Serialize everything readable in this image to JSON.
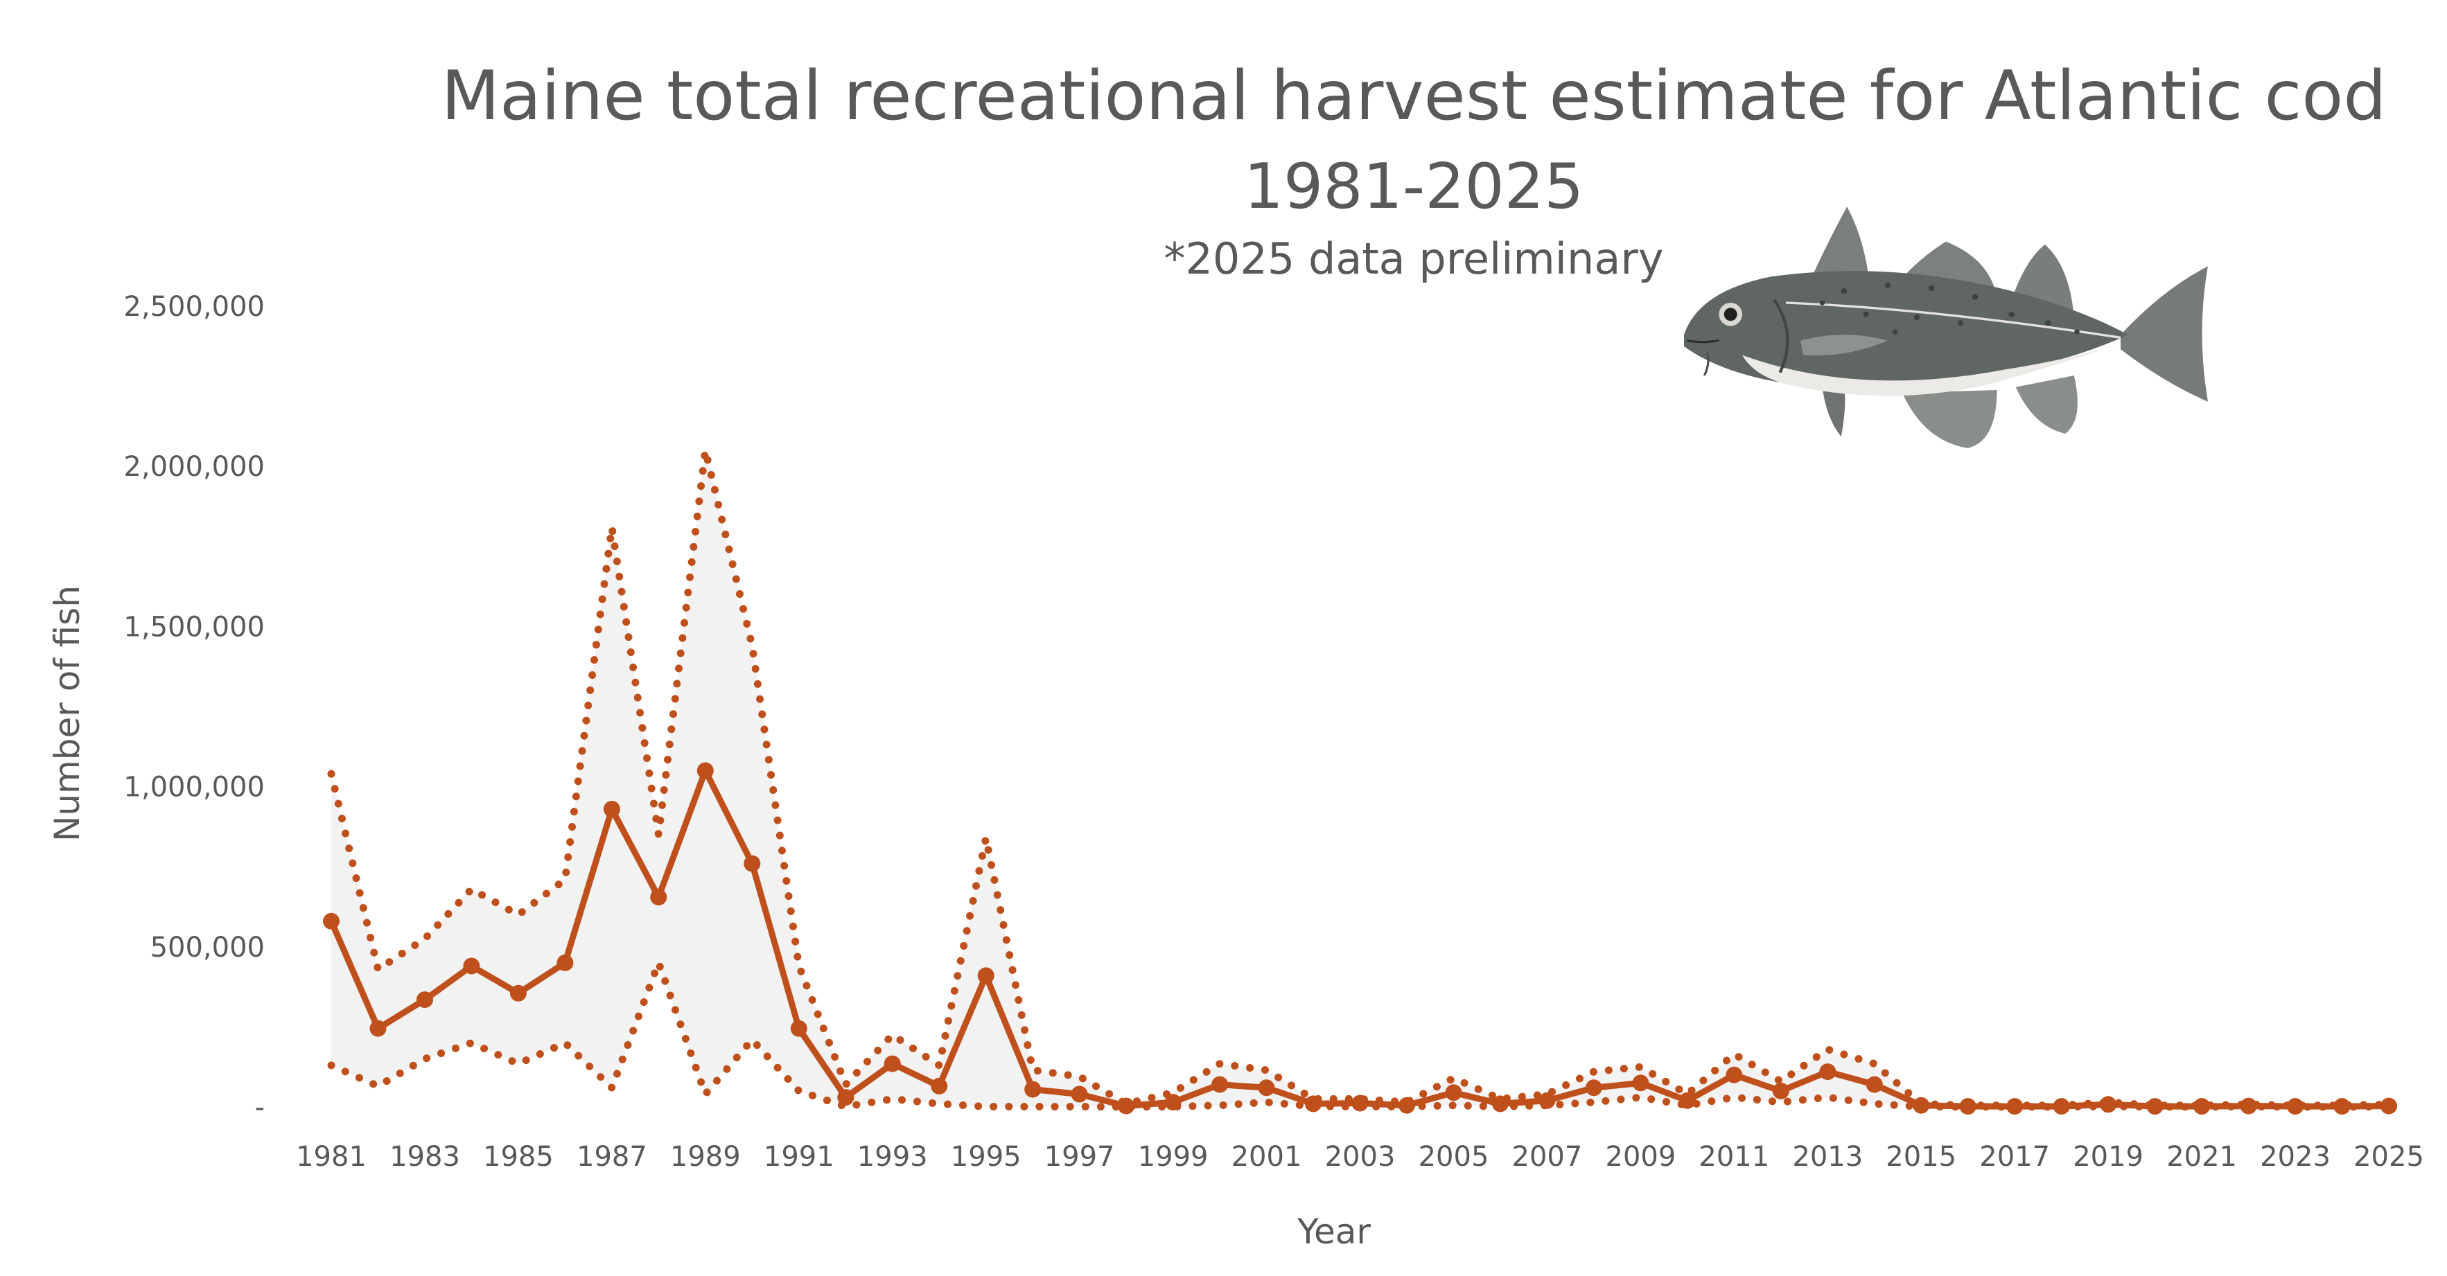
{
  "chart_data": {
    "type": "line",
    "title": "Maine total recreational harvest estimate for Atlantic cod",
    "subtitle": "1981-2025",
    "note": "*2025 data preliminary",
    "xlabel": "Year",
    "ylabel": "Number of fish",
    "ylim": [
      0,
      2500000
    ],
    "y_ticks": [
      0,
      500000,
      1000000,
      1500000,
      2000000,
      2500000
    ],
    "y_tick_labels": [
      "-",
      "500,000",
      "1,000,000",
      "1,500,000",
      "2,000,000",
      "2,500,000"
    ],
    "x": [
      1981,
      1982,
      1983,
      1984,
      1985,
      1986,
      1987,
      1988,
      1989,
      1990,
      1991,
      1992,
      1993,
      1994,
      1995,
      1996,
      1997,
      1998,
      1999,
      2000,
      2001,
      2002,
      2003,
      2004,
      2005,
      2006,
      2007,
      2008,
      2009,
      2010,
      2011,
      2012,
      2013,
      2014,
      2015,
      2016,
      2017,
      2018,
      2019,
      2020,
      2021,
      2022,
      2023,
      2024,
      2025
    ],
    "x_tick_labels": [
      "1981",
      "1983",
      "1985",
      "1987",
      "1989",
      "1991",
      "1993",
      "1995",
      "1997",
      "1999",
      "2001",
      "2003",
      "2005",
      "2007",
      "2009",
      "2011",
      "2013",
      "2015",
      "2017",
      "2019",
      "2021",
      "2023",
      "2025"
    ],
    "gridlines": false,
    "legend": "none",
    "colors": {
      "series": "#C0501B",
      "band_fill": "#F2F2F2",
      "text": "#595959"
    },
    "series": [
      {
        "role": "estimate",
        "style": "solid-with-markers",
        "values": [
          580000,
          245000,
          335000,
          440000,
          355000,
          450000,
          930000,
          655000,
          1050000,
          760000,
          245000,
          30000,
          135000,
          65000,
          410000,
          55000,
          40000,
          3000,
          15000,
          70000,
          60000,
          10000,
          12000,
          5000,
          45000,
          10000,
          20000,
          60000,
          75000,
          20000,
          100000,
          50000,
          110000,
          70000,
          5000,
          2000,
          2000,
          2000,
          8000,
          2000,
          2000,
          3000,
          2000,
          2000,
          3000
        ]
      },
      {
        "role": "upper",
        "style": "dotted",
        "values": [
          1040000,
          430000,
          525000,
          680000,
          600000,
          710000,
          1810000,
          850000,
          2050000,
          1440000,
          440000,
          70000,
          225000,
          130000,
          840000,
          115000,
          95000,
          10000,
          45000,
          135000,
          115000,
          25000,
          25000,
          15000,
          90000,
          25000,
          40000,
          110000,
          125000,
          40000,
          165000,
          80000,
          180000,
          135000,
          10000,
          5000,
          5000,
          5000,
          15000,
          5000,
          5000,
          8000,
          5000,
          5000,
          8000
        ]
      },
      {
        "role": "lower",
        "style": "dotted",
        "values": [
          130000,
          65000,
          150000,
          200000,
          135000,
          200000,
          60000,
          450000,
          40000,
          210000,
          50000,
          1000,
          25000,
          10000,
          1000,
          1000,
          1000,
          500,
          1000,
          5000,
          15000,
          2000,
          1000,
          1000,
          5000,
          1000,
          5000,
          15000,
          30000,
          5000,
          30000,
          15000,
          30000,
          10000,
          1000,
          500,
          500,
          500,
          2000,
          500,
          500,
          1000,
          500,
          500,
          1000
        ]
      }
    ]
  },
  "image": {
    "name": "atlantic-cod-illustration"
  }
}
